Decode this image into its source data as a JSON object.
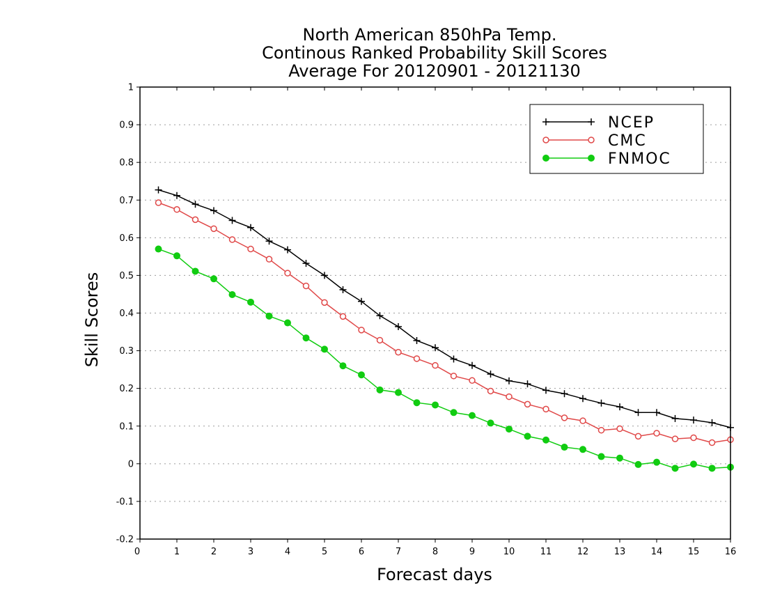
{
  "chart_data": {
    "type": "line",
    "title_lines": [
      "North American 850hPa Temp.",
      "Continous Ranked Probability Skill Scores",
      "Average For 20120901 - 20121130"
    ],
    "xlabel": "Forecast days",
    "ylabel": "Skill Scores",
    "xlim": [
      0,
      16
    ],
    "ylim": [
      -0.2,
      1
    ],
    "x_ticks": [
      0,
      1,
      2,
      3,
      4,
      5,
      6,
      7,
      8,
      9,
      10,
      11,
      12,
      13,
      14,
      15,
      16
    ],
    "y_ticks": [
      -0.2,
      -0.1,
      0,
      0.1,
      0.2,
      0.3,
      0.4,
      0.5,
      0.6,
      0.7,
      0.8,
      0.9,
      1
    ],
    "y_tick_labels": [
      "-0.2",
      "-0.1",
      "0",
      "0.1",
      "0.2",
      "0.3",
      "0.4",
      "0.5",
      "0.6",
      "0.7",
      "0.8",
      "0.9",
      "1"
    ],
    "grid": "horizontal dotted",
    "legend_position": "top-right",
    "x": [
      0.5,
      1,
      1.5,
      2,
      2.5,
      3,
      3.5,
      4,
      4.5,
      5,
      5.5,
      6,
      6.5,
      7,
      7.5,
      8,
      8.5,
      9,
      9.5,
      10,
      10.5,
      11,
      11.5,
      12,
      12.5,
      13,
      13.5,
      14,
      14.5,
      15,
      15.5,
      16
    ],
    "series": [
      {
        "name": "NCEP",
        "color": "#000000",
        "marker": "plus",
        "values": [
          0.727,
          0.712,
          0.689,
          0.672,
          0.646,
          0.627,
          0.591,
          0.568,
          0.532,
          0.5,
          0.462,
          0.431,
          0.393,
          0.364,
          0.327,
          0.308,
          0.278,
          0.261,
          0.238,
          0.22,
          0.212,
          0.195,
          0.186,
          0.173,
          0.161,
          0.151,
          0.136,
          0.136,
          0.12,
          0.116,
          0.109,
          0.096
        ]
      },
      {
        "name": "CMC",
        "color": "#e04848",
        "marker": "open-circle",
        "values": [
          0.693,
          0.675,
          0.648,
          0.624,
          0.595,
          0.57,
          0.543,
          0.506,
          0.472,
          0.428,
          0.391,
          0.355,
          0.328,
          0.296,
          0.279,
          0.261,
          0.233,
          0.221,
          0.193,
          0.178,
          0.158,
          0.145,
          0.122,
          0.114,
          0.089,
          0.093,
          0.073,
          0.081,
          0.066,
          0.069,
          0.056,
          0.064
        ]
      },
      {
        "name": "FNMOC",
        "color": "#11cc11",
        "marker": "filled-circle",
        "values": [
          0.57,
          0.552,
          0.511,
          0.491,
          0.449,
          0.429,
          0.392,
          0.374,
          0.334,
          0.304,
          0.26,
          0.236,
          0.196,
          0.189,
          0.162,
          0.156,
          0.136,
          0.128,
          0.108,
          0.092,
          0.073,
          0.063,
          0.044,
          0.038,
          0.019,
          0.015,
          -0.002,
          0.004,
          -0.012,
          -0.001,
          -0.012,
          -0.009
        ]
      }
    ]
  }
}
